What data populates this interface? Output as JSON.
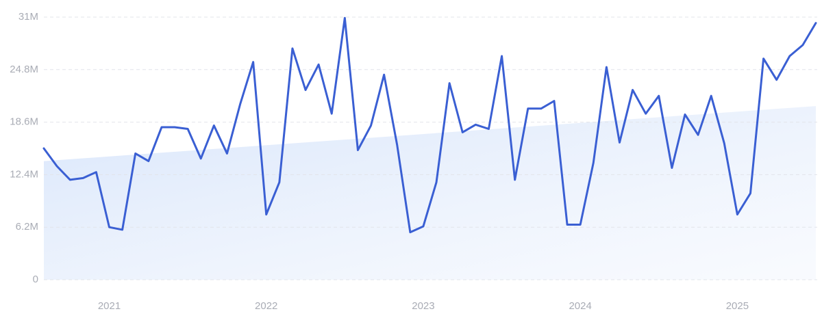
{
  "chart_data": {
    "type": "line",
    "categories": [
      null,
      null,
      null,
      null,
      null,
      "2021",
      null,
      null,
      null,
      null,
      null,
      null,
      null,
      null,
      null,
      null,
      null,
      "2022",
      null,
      null,
      null,
      null,
      null,
      null,
      null,
      null,
      null,
      null,
      null,
      "2023",
      null,
      null,
      null,
      null,
      null,
      null,
      null,
      null,
      null,
      null,
      null,
      "2024",
      null,
      null,
      null,
      null,
      null,
      null,
      null,
      null,
      null,
      null,
      null,
      "2025",
      null,
      null,
      null,
      null,
      null,
      null
    ],
    "series": [
      {
        "color": "#3a5fd3",
        "values": [
          15.5,
          13.4,
          11.8,
          12.0,
          12.7,
          6.2,
          5.9,
          14.9,
          14.0,
          18.0,
          18.0,
          17.8,
          14.3,
          18.2,
          14.9,
          20.7,
          25.7,
          7.7,
          11.5,
          27.3,
          22.4,
          25.4,
          19.6,
          30.9,
          15.3,
          18.2,
          24.2,
          15.9,
          5.6,
          6.3,
          11.5,
          23.2,
          17.4,
          18.3,
          17.8,
          26.4,
          11.8,
          20.2,
          20.2,
          21.1,
          6.5,
          6.5,
          13.8,
          25.1,
          16.2,
          22.4,
          19.6,
          21.7,
          13.2,
          19.5,
          17.1,
          21.7,
          16.1,
          7.7,
          10.2,
          26.1,
          23.6,
          26.4,
          27.7,
          30.3
        ]
      }
    ],
    "trend": {
      "color": "#dce8fb",
      "values": [
        14.0,
        20.5
      ]
    },
    "ylim": [
      0,
      31
    ],
    "yticks": [
      0,
      {
        "value": 6.2,
        "label": "6.2M"
      },
      {
        "value": 12.4,
        "label": "12.4M"
      },
      {
        "value": 18.6,
        "label": "18.6M"
      },
      {
        "value": 24.8,
        "label": "24.8M"
      },
      {
        "value": 31,
        "label": "31M"
      }
    ],
    "grid": true
  }
}
